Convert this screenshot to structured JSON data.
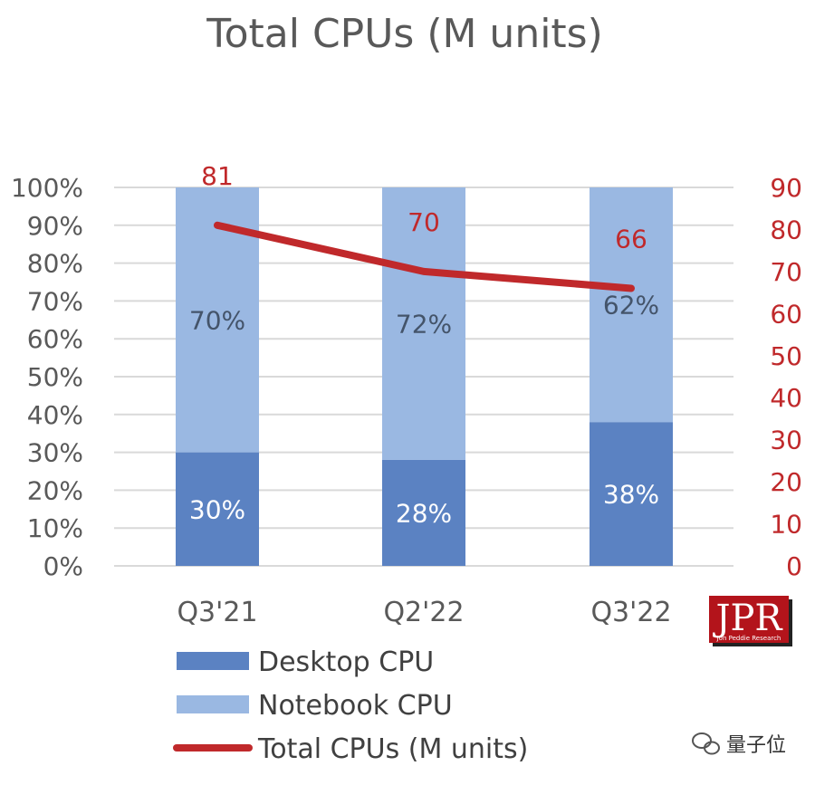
{
  "chart_data": {
    "type": "bar",
    "stacked": true,
    "title": "Total CPUs (M units)",
    "categories": [
      "Q3'21",
      "Q2'22",
      "Q3'22"
    ],
    "series": [
      {
        "name": "Desktop CPU",
        "axis": "left",
        "type": "bar",
        "values": [
          30,
          28,
          38
        ],
        "labels": [
          "30%",
          "28%",
          "38%"
        ],
        "color": "#5b82c2"
      },
      {
        "name": "Notebook CPU",
        "axis": "left",
        "type": "bar",
        "values": [
          70,
          72,
          62
        ],
        "labels": [
          "70%",
          "72%",
          "62%"
        ],
        "color": "#9ab8e2"
      },
      {
        "name": "Total CPUs (M units)",
        "axis": "right",
        "type": "line",
        "values": [
          81,
          70,
          66
        ],
        "labels": [
          "81",
          "70",
          "66"
        ],
        "color": "#c0292b"
      }
    ],
    "y_left": {
      "min": 0,
      "max": 100,
      "ticks": [
        "0%",
        "10%",
        "20%",
        "30%",
        "40%",
        "50%",
        "60%",
        "70%",
        "80%",
        "90%",
        "100%"
      ]
    },
    "y_right": {
      "min": 0,
      "max": 90,
      "ticks": [
        "0",
        "10",
        "20",
        "30",
        "40",
        "50",
        "60",
        "70",
        "80",
        "90"
      ]
    },
    "grid": true,
    "legend_position": "bottom"
  },
  "logo": {
    "text": "JPR",
    "subtext": "Jon Peddie Research"
  },
  "watermark": {
    "text": "量子位",
    "icon": "wechat-icon"
  }
}
